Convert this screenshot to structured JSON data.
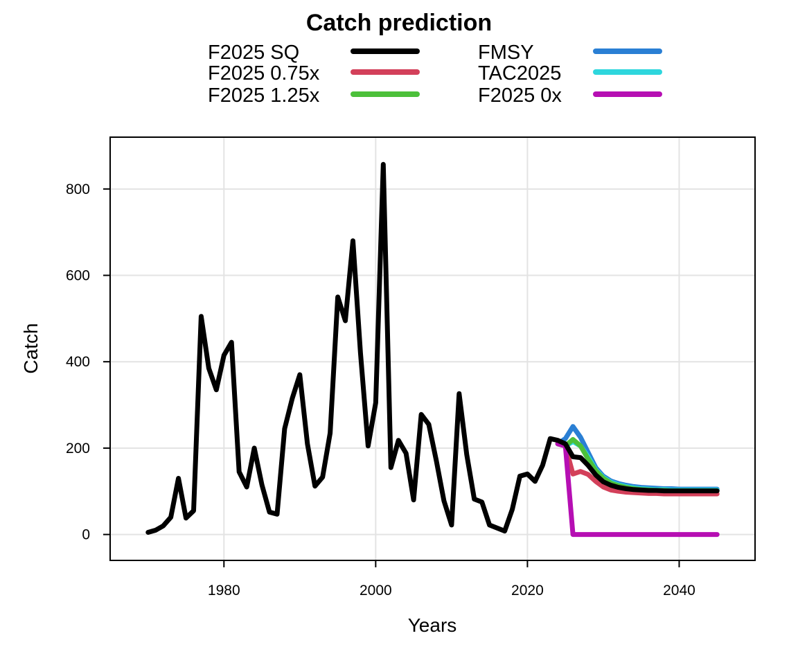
{
  "chart_data": {
    "type": "line",
    "title": "Catch prediction",
    "xlabel": "Years",
    "ylabel": "Catch",
    "xlim": [
      1965,
      2050
    ],
    "ylim": [
      -60,
      920
    ],
    "x_ticks": [
      1980,
      2000,
      2020,
      2040
    ],
    "y_ticks": [
      0,
      200,
      400,
      600,
      800
    ],
    "grid": true,
    "legend_position": "top",
    "series": [
      {
        "name": "FMSY",
        "color": "#2a7fd4",
        "x": [
          2024,
          2025,
          2026,
          2027,
          2028,
          2029,
          2030,
          2031,
          2032,
          2033,
          2034,
          2035,
          2036,
          2037,
          2038,
          2039,
          2040,
          2041,
          2042,
          2043,
          2044,
          2045
        ],
        "y": [
          210,
          222,
          250,
          225,
          190,
          155,
          135,
          124,
          118,
          114,
          111,
          109,
          108,
          107,
          106,
          106,
          105,
          105,
          105,
          105,
          105,
          105
        ]
      },
      {
        "name": "TAC2025",
        "color": "#2ed6dd",
        "x": [
          2024,
          2025,
          2026,
          2027,
          2028,
          2029,
          2030,
          2031,
          2032,
          2033,
          2034,
          2035,
          2036,
          2037,
          2038,
          2039,
          2040,
          2041,
          2042,
          2043,
          2044,
          2045
        ],
        "y": [
          210,
          205,
          215,
          205,
          180,
          150,
          132,
          121,
          115,
          111,
          108,
          106,
          105,
          104,
          104,
          103,
          103,
          103,
          103,
          103,
          103,
          103
        ]
      },
      {
        "name": "F2025 1.25x",
        "color": "#4cc03a",
        "x": [
          2024,
          2025,
          2026,
          2027,
          2028,
          2029,
          2030,
          2031,
          2032,
          2033,
          2034,
          2035,
          2036,
          2037,
          2038,
          2039,
          2040,
          2041,
          2042,
          2043,
          2044,
          2045
        ],
        "y": [
          210,
          205,
          220,
          205,
          175,
          148,
          130,
          119,
          113,
          109,
          106,
          104,
          103,
          102,
          102,
          101,
          101,
          101,
          101,
          101,
          101,
          101
        ]
      },
      {
        "name": "F2025 0.75x",
        "color": "#d3405a",
        "x": [
          2024,
          2025,
          2026,
          2027,
          2028,
          2029,
          2030,
          2031,
          2032,
          2033,
          2034,
          2035,
          2036,
          2037,
          2038,
          2039,
          2040,
          2041,
          2042,
          2043,
          2044,
          2045
        ],
        "y": [
          210,
          205,
          140,
          146,
          139,
          123,
          110,
          103,
          100,
          98,
          97,
          96,
          95,
          95,
          94,
          94,
          94,
          94,
          94,
          94,
          94,
          94
        ]
      },
      {
        "name": "F2025 0x",
        "color": "#b60fb3",
        "x": [
          2024,
          2025,
          2026,
          2027,
          2028,
          2029,
          2030,
          2031,
          2032,
          2033,
          2034,
          2035,
          2036,
          2037,
          2038,
          2039,
          2040,
          2041,
          2042,
          2043,
          2044,
          2045
        ],
        "y": [
          210,
          205,
          0,
          0,
          0,
          0,
          0,
          0,
          0,
          0,
          0,
          0,
          0,
          0,
          0,
          0,
          0,
          0,
          0,
          0,
          0,
          0
        ]
      },
      {
        "name": "F2025 SQ",
        "color": "#000000",
        "x": [
          1970,
          1971,
          1972,
          1973,
          1974,
          1975,
          1976,
          1977,
          1978,
          1979,
          1980,
          1981,
          1982,
          1983,
          1984,
          1985,
          1986,
          1987,
          1988,
          1989,
          1990,
          1991,
          1992,
          1993,
          1994,
          1995,
          1996,
          1997,
          1998,
          1999,
          2000,
          2001,
          2002,
          2003,
          2004,
          2005,
          2006,
          2007,
          2008,
          2009,
          2010,
          2011,
          2012,
          2013,
          2014,
          2015,
          2016,
          2017,
          2018,
          2019,
          2020,
          2021,
          2022,
          2023,
          2024,
          2025,
          2026,
          2027,
          2028,
          2029,
          2030,
          2031,
          2032,
          2033,
          2034,
          2035,
          2036,
          2037,
          2038,
          2039,
          2040,
          2041,
          2042,
          2043,
          2044,
          2045
        ],
        "y": [
          5,
          10,
          20,
          40,
          130,
          38,
          55,
          505,
          385,
          335,
          415,
          445,
          145,
          110,
          200,
          115,
          52,
          47,
          245,
          315,
          370,
          210,
          112,
          133,
          235,
          550,
          495,
          680,
          420,
          205,
          305,
          857,
          155,
          218,
          188,
          80,
          278,
          255,
          170,
          78,
          22,
          326,
          185,
          82,
          75,
          22,
          15,
          8,
          58,
          135,
          140,
          123,
          160,
          222,
          218,
          210,
          180,
          178,
          160,
          138,
          122,
          114,
          109,
          106,
          104,
          103,
          102,
          102,
          101,
          101,
          101,
          101,
          101,
          101,
          101,
          101
        ]
      }
    ],
    "legend": {
      "columns": [
        [
          "F2025 SQ",
          "F2025 0.75x",
          "F2025 1.25x"
        ],
        [
          "FMSY",
          "TAC2025",
          "F2025 0x"
        ]
      ]
    }
  }
}
